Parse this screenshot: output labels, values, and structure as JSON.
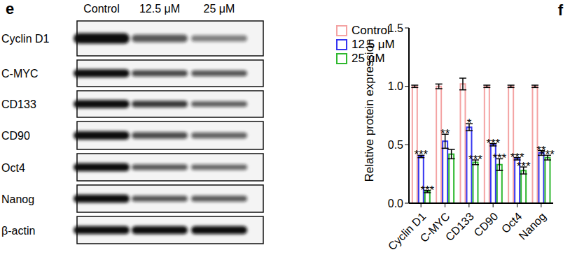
{
  "blot": {
    "panel": "e",
    "lanes": [
      "Control",
      "12.5 μM",
      "25 μM"
    ],
    "proteins": [
      "Cyclin D1",
      "C-MYC",
      "CD133",
      "CD90",
      "Oct4",
      "Nanog",
      "β-actin"
    ]
  },
  "chart_data": {
    "type": "bar",
    "title": "f",
    "y_label": "Relative protein expression",
    "categories": [
      "Cyclin D1",
      "C-MYC",
      "CD133",
      "CD90",
      "Oct4",
      "Nanog"
    ],
    "series": [
      {
        "name": "Control",
        "color": "#f4a3a3",
        "values": [
          1.0,
          1.0,
          1.02,
          1.0,
          1.0,
          1.0
        ],
        "errors": [
          0.01,
          0.02,
          0.05,
          0.01,
          0.01,
          0.01
        ],
        "significance": [
          null,
          null,
          null,
          null,
          null,
          null
        ]
      },
      {
        "name": "12.5 μM",
        "color": "#3535f0",
        "values": [
          0.4,
          0.53,
          0.65,
          0.5,
          0.38,
          0.43
        ],
        "errors": [
          0.01,
          0.06,
          0.03,
          0.01,
          0.01,
          0.02
        ],
        "significance": [
          "***",
          "**",
          "*",
          "***",
          "***",
          "**"
        ]
      },
      {
        "name": "25 μM",
        "color": "#2fb82f",
        "values": [
          0.1,
          0.42,
          0.35,
          0.33,
          0.28,
          0.39
        ],
        "errors": [
          0.01,
          0.04,
          0.02,
          0.05,
          0.03,
          0.02
        ],
        "significance": [
          "***",
          null,
          "***",
          "***",
          "***",
          "***"
        ]
      }
    ],
    "ylim": [
      0,
      1.5
    ],
    "yticks": [
      {
        "value": 0,
        "label": "0.0"
      },
      {
        "value": 0.5,
        "label": "0.5"
      },
      {
        "value": 1.0,
        "label": "1.0"
      },
      {
        "value": 1.5,
        "label": "1.5"
      }
    ],
    "legend": "upper left",
    "grid": false
  }
}
